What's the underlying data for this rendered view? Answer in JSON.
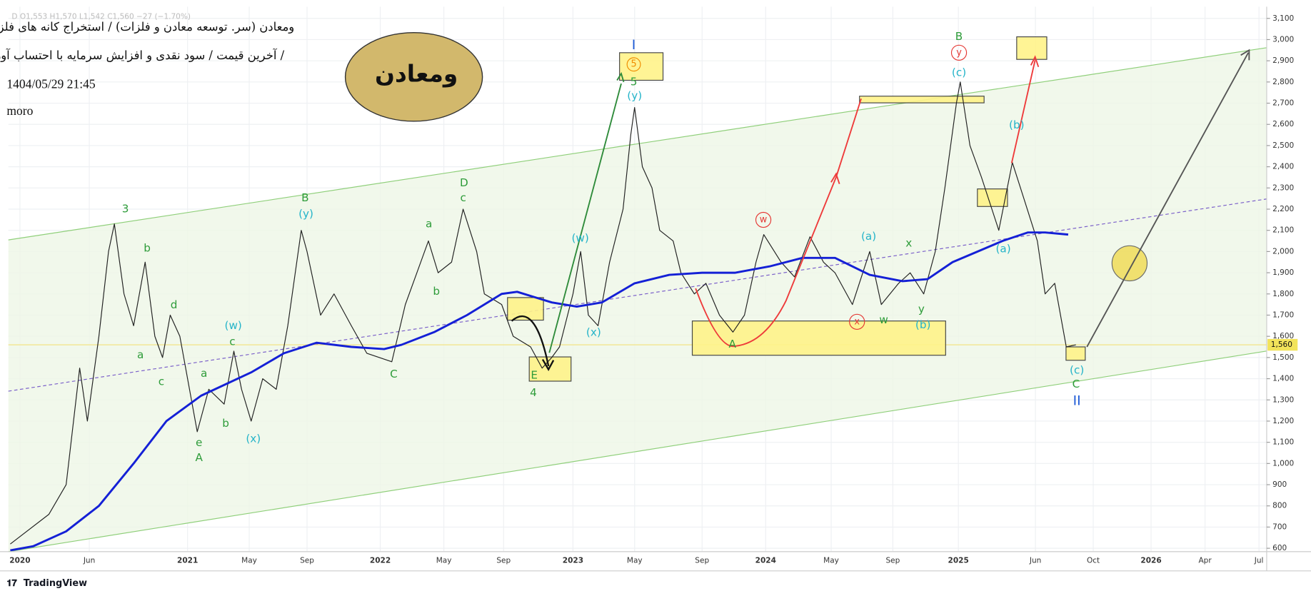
{
  "chart_data": {
    "type": "line",
    "ohlc_header": "D  O1,553  H1,570  L1,542  C1,560  −27 (−1.70%)",
    "title": "ومعادن (سر. توسعه معادن و فلزات) / استخراج کانه های فلزی",
    "subtitle": "آخرین قیمت / سود نقدی و افزایش سرمایه با احتساب آورده /",
    "date": "1404/05/29 21:45",
    "author": "moro",
    "badge": "ومعادن",
    "brand": "TradingView",
    "xlim": [
      2020.07,
      2026.6
    ],
    "ylim": [
      584,
      3155
    ],
    "grid": true,
    "xticks": [
      {
        "value": 2020.13,
        "label": "2020"
      },
      {
        "value": 2020.49,
        "label": "Jun"
      },
      {
        "value": 2021.0,
        "label": "2021"
      },
      {
        "value": 2021.32,
        "label": "May"
      },
      {
        "value": 2021.62,
        "label": "Sep"
      },
      {
        "value": 2022.0,
        "label": "2022"
      },
      {
        "value": 2022.33,
        "label": "May"
      },
      {
        "value": 2022.64,
        "label": "Sep"
      },
      {
        "value": 2023.0,
        "label": "2023"
      },
      {
        "value": 2023.32,
        "label": "May"
      },
      {
        "value": 2023.67,
        "label": "Sep"
      },
      {
        "value": 2024.0,
        "label": "2024"
      },
      {
        "value": 2024.34,
        "label": "May"
      },
      {
        "value": 2024.66,
        "label": "Sep"
      },
      {
        "value": 2025.0,
        "label": "2025"
      },
      {
        "value": 2025.4,
        "label": "Jun"
      },
      {
        "value": 2025.7,
        "label": "Oct"
      },
      {
        "value": 2026.0,
        "label": "2026"
      },
      {
        "value": 2026.28,
        "label": "Apr"
      },
      {
        "value": 2026.56,
        "label": "Jul"
      }
    ],
    "yticks": [
      600,
      700,
      800,
      900,
      {
        "value": 1000,
        "label": "1,000"
      },
      {
        "value": 1100,
        "label": "1,100"
      },
      {
        "value": 1200,
        "label": "1,200"
      },
      {
        "value": 1300,
        "label": "1,300"
      },
      {
        "value": 1400,
        "label": "1,400"
      },
      {
        "value": 1500,
        "label": "1,500"
      },
      {
        "value": 1600,
        "label": "1,600"
      },
      {
        "value": 1700,
        "label": "1,700"
      },
      {
        "value": 1800,
        "label": "1,800"
      },
      {
        "value": 1900,
        "label": "1,900"
      },
      {
        "value": 2000,
        "label": "2,000"
      },
      {
        "value": 2100,
        "label": "2,100"
      },
      {
        "value": 2200,
        "label": "2,200"
      },
      {
        "value": 2300,
        "label": "2,300"
      },
      {
        "value": 2400,
        "label": "2,400"
      },
      {
        "value": 2500,
        "label": "2,500"
      },
      {
        "value": 2600,
        "label": "2,600"
      },
      {
        "value": 2700,
        "label": "2,700"
      },
      {
        "value": 2800,
        "label": "2,800"
      },
      {
        "value": 2900,
        "label": "2,900"
      },
      {
        "value": 3000,
        "label": "3,000"
      },
      {
        "value": 3100,
        "label": "3,100"
      }
    ],
    "last_price": {
      "value": 1560,
      "label": "1,560"
    },
    "series": [
      {
        "color": "#222222",
        "x": [
          2020.08,
          2020.28,
          2020.37,
          2020.44,
          2020.48,
          2020.54,
          2020.59,
          2020.62,
          2020.67,
          2020.72,
          2020.78,
          2020.83,
          2020.87,
          2020.91,
          2020.96,
          2021.05,
          2021.11,
          2021.19,
          2021.24,
          2021.28,
          2021.33,
          2021.39,
          2021.46,
          2021.52,
          2021.59,
          2021.62,
          2021.69,
          2021.76,
          2021.85,
          2021.93,
          2022.06,
          2022.13,
          2022.19,
          2022.25,
          2022.3,
          2022.37,
          2022.43,
          2022.5,
          2022.54,
          2022.63,
          2022.69,
          2022.78,
          2022.84,
          2022.89,
          2022.93,
          2023.0,
          2023.04,
          2023.08,
          2023.13,
          2023.19,
          2023.26,
          2023.3,
          2023.32,
          2023.36,
          2023.41,
          2023.45,
          2023.52,
          2023.56,
          2023.63,
          2023.69,
          2023.76,
          2023.83,
          2023.89,
          2023.95,
          2023.99,
          2024.08,
          2024.15,
          2024.23,
          2024.3,
          2024.36,
          2024.45,
          2024.54,
          2024.6,
          2024.69,
          2024.75,
          2024.82,
          2024.88,
          2024.93,
          2024.99,
          2025.01,
          2025.06,
          2025.12,
          2025.21,
          2025.28,
          2025.34,
          2025.41,
          2025.45,
          2025.5,
          2025.56,
          2025.61
        ],
        "values": [
          620,
          760,
          900,
          1450,
          1200,
          1600,
          2000,
          2130,
          1800,
          1650,
          1950,
          1600,
          1500,
          1700,
          1600,
          1150,
          1350,
          1280,
          1530,
          1350,
          1200,
          1400,
          1350,
          1650,
          2100,
          2000,
          1700,
          1800,
          1650,
          1520,
          1480,
          1750,
          1900,
          2050,
          1900,
          1950,
          2200,
          2000,
          1800,
          1750,
          1600,
          1550,
          1450,
          1500,
          1550,
          1800,
          2000,
          1700,
          1650,
          1950,
          2200,
          2550,
          2680,
          2400,
          2300,
          2100,
          2050,
          1900,
          1800,
          1850,
          1700,
          1620,
          1700,
          1950,
          2080,
          1950,
          1880,
          2070,
          1950,
          1900,
          1750,
          2000,
          1750,
          1850,
          1900,
          1800,
          2000,
          2300,
          2700,
          2800,
          2500,
          2350,
          2100,
          2420,
          2250,
          2050,
          1800,
          1850,
          1550,
          1560
        ]
      },
      {
        "color": "#1420d6",
        "x": [
          2020.08,
          2020.2,
          2020.37,
          2020.54,
          2020.72,
          2020.89,
          2021.07,
          2021.33,
          2021.5,
          2021.67,
          2021.85,
          2022.02,
          2022.11,
          2022.28,
          2022.45,
          2022.63,
          2022.71,
          2022.89,
          2023.02,
          2023.15,
          2023.32,
          2023.5,
          2023.67,
          2023.84,
          2024.02,
          2024.19,
          2024.36,
          2024.54,
          2024.71,
          2024.84,
          2024.97,
          2025.1,
          2025.23,
          2025.36,
          2025.45,
          2025.57
        ],
        "values": [
          590,
          610,
          680,
          800,
          1000,
          1200,
          1320,
          1430,
          1520,
          1570,
          1550,
          1540,
          1560,
          1620,
          1700,
          1800,
          1810,
          1760,
          1740,
          1760,
          1850,
          1890,
          1900,
          1900,
          1930,
          1970,
          1970,
          1890,
          1860,
          1870,
          1950,
          2000,
          2050,
          2090,
          2090,
          2080
        ]
      }
    ],
    "annotations": [
      "3",
      "b",
      "a",
      "d",
      "c",
      "e",
      "A",
      "a",
      "b",
      "(w)",
      "c",
      "(x)",
      "B",
      "(y)",
      "C",
      "a",
      "b",
      "D",
      "c",
      "E",
      "4",
      "(w)",
      "(x)",
      "I",
      "5",
      "5",
      "(y)",
      "w",
      "x",
      "w",
      "A",
      "(a)",
      "x",
      "y",
      "(b)",
      "B",
      "y",
      "(c)",
      "(b)",
      "(a)",
      "(c)",
      "C",
      "II"
    ]
  }
}
